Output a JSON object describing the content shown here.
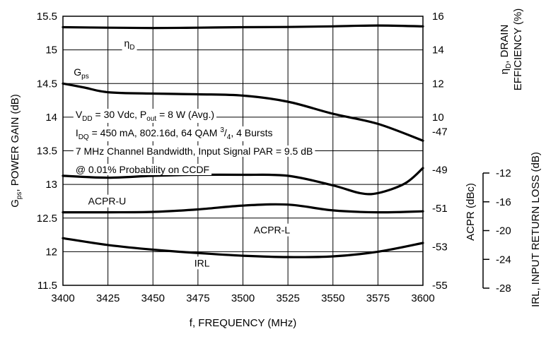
{
  "chart_data": {
    "type": "line",
    "title": "",
    "xlabel": "f, FREQUENCY (MHz)",
    "x_ticks": [
      "3400",
      "3425",
      "3450",
      "3475",
      "3500",
      "3525",
      "3550",
      "3575",
      "3600"
    ],
    "xlim": [
      3400,
      3600
    ],
    "grid": true,
    "axes": {
      "left": {
        "label_main": "G",
        "label_sub": "ps",
        "label_rest": ", POWER GAIN (dB)",
        "ylim": [
          11.5,
          15.5
        ],
        "ticks": [
          "15.5",
          "15",
          "14.5",
          "14",
          "13.5",
          "13",
          "12.5",
          "12",
          "11.5"
        ]
      },
      "right_eff": {
        "label_line1_main": "η",
        "label_line1_sub": "D",
        "label_line1_rest": ", DRAIN",
        "label_line2": "EFFICIENCY (%)",
        "ylim": [
          0,
          16
        ],
        "ticks": [
          "16",
          "14",
          "12",
          "10"
        ]
      },
      "right_acpr": {
        "label": "ACPR (dBc)",
        "ylim": [
          -55,
          -41
        ],
        "ticks": [
          "-47",
          "-49",
          "-51",
          "-53",
          "-55"
        ]
      },
      "right_irl": {
        "label": "IRL, INPUT RETURN LOSS (dB)",
        "ylim": [
          -28,
          -12
        ],
        "ticks": [
          "-12",
          "-16",
          "-20",
          "-24",
          "-28"
        ]
      }
    },
    "series": [
      {
        "axis": "right_eff",
        "x": [
          3400,
          3425,
          3450,
          3475,
          3500,
          3525,
          3550,
          3575,
          3600
        ],
        "y": [
          15.35,
          15.32,
          15.3,
          15.32,
          15.35,
          15.36,
          15.4,
          15.45,
          15.4
        ]
      },
      {
        "axis": "left",
        "x": [
          3400,
          3412,
          3425,
          3450,
          3475,
          3500,
          3525,
          3550,
          3575,
          3600
        ],
        "y": [
          14.5,
          14.44,
          14.37,
          14.35,
          14.34,
          14.32,
          14.23,
          14.05,
          13.9,
          13.65
        ]
      },
      {
        "axis": "right_acpr",
        "x": [
          3400,
          3425,
          3450,
          3475,
          3500,
          3525,
          3550,
          3565,
          3575,
          3590,
          3600
        ],
        "y": [
          -49.3,
          -49.4,
          -49.3,
          -49.25,
          -49.25,
          -49.3,
          -49.8,
          -50.2,
          -50.2,
          -49.7,
          -48.9
        ]
      },
      {
        "axis": "right_acpr",
        "x": [
          3400,
          3425,
          3450,
          3475,
          3500,
          3525,
          3550,
          3575,
          3600
        ],
        "y": [
          -51.2,
          -51.2,
          -51.18,
          -51.05,
          -50.85,
          -50.8,
          -51.1,
          -51.2,
          -51.15
        ]
      },
      {
        "axis": "left",
        "x": [
          3400,
          3425,
          3450,
          3475,
          3500,
          3525,
          3550,
          3575,
          3600
        ],
        "y": [
          12.2,
          12.1,
          12.03,
          11.98,
          11.94,
          11.92,
          11.93,
          12.0,
          12.13
        ]
      }
    ],
    "annotations": [
      {
        "main": "η",
        "sub": "D",
        "x": 3434,
        "y": 15.05,
        "axis": "left"
      },
      {
        "main": "G",
        "sub": "ps",
        "x": 3406,
        "y": 14.62,
        "axis": "left"
      },
      {
        "text": "ACPR-U",
        "x": 3414,
        "y": 12.7,
        "axis": "left"
      },
      {
        "text": "ACPR-L",
        "x": 3506,
        "y": 12.27,
        "axis": "left"
      },
      {
        "text": "IRL",
        "x": 3473,
        "y": 11.78,
        "axis": "left"
      }
    ],
    "conditions": [
      [
        {
          "t": "V"
        },
        {
          "s": "DD"
        },
        {
          "t": " = 30 Vdc, P"
        },
        {
          "s": "out"
        },
        {
          "t": " = 8 W (Avg.)"
        }
      ],
      [
        {
          "t": "I"
        },
        {
          "s": "DQ"
        },
        {
          "t": " = 450 mA, 802.16d, 64 QAM "
        },
        {
          "sup": "3"
        },
        {
          "t": "/"
        },
        {
          "s": "4"
        },
        {
          "t": ", 4 Bursts"
        }
      ],
      [
        {
          "t": "7 MHz Channel Bandwidth, Input Signal PAR = 9.5 dB"
        }
      ],
      [
        {
          "t": "@ 0.01% Probability on CCDF"
        }
      ]
    ]
  }
}
